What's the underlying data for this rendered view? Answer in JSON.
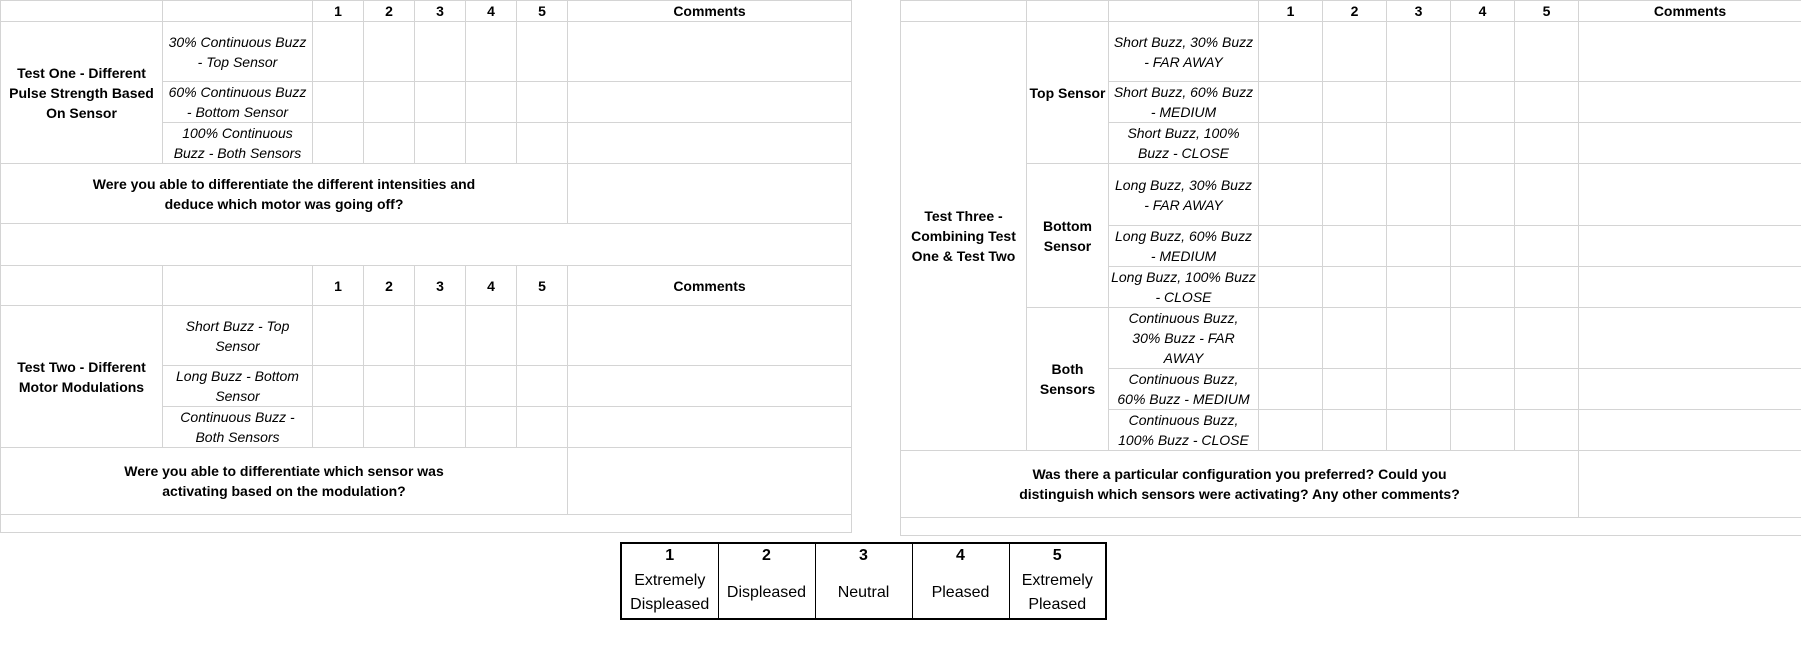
{
  "columns": {
    "ratings": [
      "1",
      "2",
      "3",
      "4",
      "5"
    ],
    "comments": "Comments"
  },
  "test1": {
    "title": "Test One - Different Pulse Strength Based On Sensor",
    "rows": [
      "30% Continuous Buzz - Top Sensor",
      "60% Continuous Buzz - Bottom Sensor",
      "100% Continuous Buzz - Both Sensors"
    ],
    "question": "Were you able to differentiate the different intensities and deduce which motor was going off?"
  },
  "test2": {
    "title": "Test Two - Different Motor Modulations",
    "rows": [
      "Short Buzz - Top Sensor",
      "Long Buzz - Bottom Sensor",
      "Continuous Buzz - Both Sensors"
    ],
    "question": "Were you able to differentiate which sensor was activating based on the modulation?"
  },
  "test3": {
    "title": "Test  Three - Combining Test One & Test Two",
    "groups": [
      {
        "label": "Top Sensor",
        "rows": [
          "Short Buzz, 30% Buzz - FAR AWAY",
          "Short Buzz, 60% Buzz - MEDIUM",
          "Short Buzz, 100% Buzz - CLOSE"
        ]
      },
      {
        "label": "Bottom Sensor",
        "rows": [
          "Long Buzz, 30% Buzz - FAR AWAY",
          "Long Buzz, 60% Buzz - MEDIUM",
          "Long Buzz, 100% Buzz - CLOSE"
        ]
      },
      {
        "label": "Both Sensors",
        "rows": [
          "Continuous Buzz, 30% Buzz - FAR AWAY",
          "Continuous Buzz, 60% Buzz - MEDIUM",
          "Continuous Buzz, 100% Buzz - CLOSE"
        ]
      }
    ],
    "question": "Was there a particular configuration you preferred? Could you distinguish which sensors were activating? Any other comments?"
  },
  "legend": [
    {
      "num": "1",
      "text": "Extremely Displeased"
    },
    {
      "num": "2",
      "text": "Displeased"
    },
    {
      "num": "3",
      "text": "Neutral"
    },
    {
      "num": "4",
      "text": "Pleased"
    },
    {
      "num": "5",
      "text": "Extremely Pleased"
    }
  ]
}
